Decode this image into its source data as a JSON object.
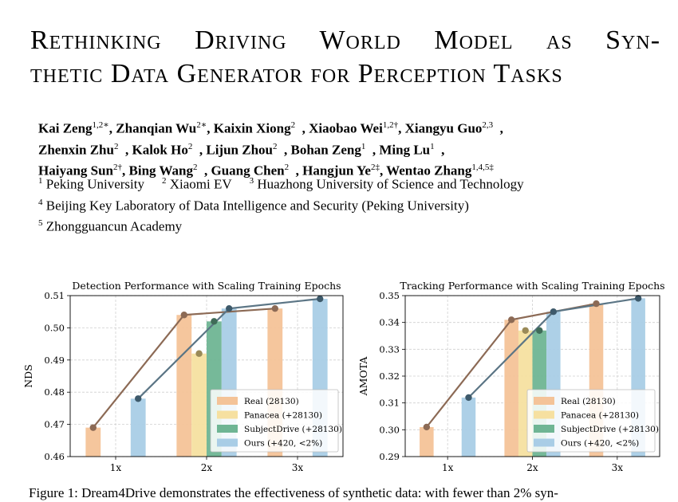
{
  "paper": {
    "title_line1": [
      "Rethinking",
      "Driving",
      "World",
      "Model",
      "as",
      "Syn-"
    ],
    "title_line2": "thetic Data Generator for Perception Tasks",
    "author_lines": [
      [
        {
          "name": "Kai Zeng",
          "sup": "1,2∗",
          "sep": ", "
        },
        {
          "name": "Zhanqian Wu",
          "sup": "2∗",
          "sep": ", "
        },
        {
          "name": "Kaixin Xiong",
          "sup": "2",
          "sep": "  , "
        },
        {
          "name": "Xiaobao Wei",
          "sup": "1,2†",
          "sep": ", "
        },
        {
          "name": "Xiangyu Guo",
          "sup": "2,3",
          "sep": "  ,"
        }
      ],
      [
        {
          "name": "Zhenxin Zhu",
          "sup": "2",
          "sep": "  , "
        },
        {
          "name": "Kalok Ho",
          "sup": "2",
          "sep": "  , "
        },
        {
          "name": "Lijun Zhou",
          "sup": "2",
          "sep": "  , "
        },
        {
          "name": "Bohan Zeng",
          "sup": "1",
          "sep": "  , "
        },
        {
          "name": "Ming Lu",
          "sup": "1",
          "sep": "  ,"
        }
      ],
      [
        {
          "name": "Haiyang Sun",
          "sup": "2†",
          "sep": ", "
        },
        {
          "name": "Bing Wang",
          "sup": "2",
          "sep": "  , "
        },
        {
          "name": "Guang Chen",
          "sup": "2",
          "sep": "  , "
        },
        {
          "name": "Hangjun Ye",
          "sup": "2‡",
          "sep": ", "
        },
        {
          "name": "Wentao Zhang",
          "sup": "1,4,5‡",
          "sep": ""
        }
      ]
    ],
    "affiliations": [
      [
        {
          "num": "1",
          "text": "Peking University"
        },
        {
          "num": "2",
          "text": "Xiaomi EV"
        },
        {
          "num": "3",
          "text": "Huazhong University of Science and Technology"
        }
      ],
      [
        {
          "num": "4",
          "text": "Beijing Key Laboratory of Data Intelligence and Security (Peking University)"
        }
      ],
      [
        {
          "num": "5",
          "text": "Zhongguancun Academy"
        }
      ]
    ],
    "caption": "Figure 1: Dream4Drive demonstrates the effectiveness of synthetic data: with fewer than 2% syn-"
  },
  "colors": {
    "real": "#f4c398",
    "panacea": "#f6e0a0",
    "subjectdrive": "#6fb594",
    "ours": "#a9cde6",
    "line_brown": "#8c6a55",
    "line_blue": "#5b7585",
    "dot_brown": "#8c6a55",
    "dot_panacea": "#9a8a58",
    "dot_subject": "#3f6b58",
    "dot_ours": "#3e5a6b"
  },
  "chart_data": [
    {
      "type": "bar",
      "title": "Detection Performance with Scaling Training Epochs",
      "xlabel": "",
      "ylabel": "NDS",
      "categories": [
        "1x",
        "2x",
        "3x"
      ],
      "ylim": [
        0.46,
        0.51
      ],
      "yticks": [
        "0.46",
        "0.47",
        "0.48",
        "0.49",
        "0.50",
        "0.51"
      ],
      "grid": true,
      "legend_position": "bottom-right",
      "series": [
        {
          "name": "Real (28130)",
          "color_key": "real",
          "dot_key": "dot_brown",
          "values": [
            0.469,
            0.504,
            0.506
          ]
        },
        {
          "name": "Panacea (+28130)",
          "color_key": "panacea",
          "dot_key": "dot_panacea",
          "values": [
            null,
            0.492,
            null
          ]
        },
        {
          "name": "SubjectDrive (+28130)",
          "color_key": "subjectdrive",
          "dot_key": "dot_subject",
          "values": [
            null,
            0.502,
            null
          ]
        },
        {
          "name": "Ours (+420, <2%)",
          "color_key": "ours",
          "dot_key": "dot_ours",
          "values": [
            0.478,
            0.506,
            0.509
          ]
        }
      ]
    },
    {
      "type": "bar",
      "title": "Tracking Performance with Scaling Training Epochs",
      "xlabel": "",
      "ylabel": "AMOTA",
      "categories": [
        "1x",
        "2x",
        "3x"
      ],
      "ylim": [
        0.29,
        0.35
      ],
      "yticks": [
        "0.29",
        "0.30",
        "0.31",
        "0.32",
        "0.33",
        "0.34",
        "0.35"
      ],
      "grid": true,
      "legend_position": "bottom-right",
      "series": [
        {
          "name": "Real (28130)",
          "color_key": "real",
          "dot_key": "dot_brown",
          "values": [
            0.301,
            0.341,
            0.347
          ]
        },
        {
          "name": "Panacea (+28130)",
          "color_key": "panacea",
          "dot_key": "dot_panacea",
          "values": [
            null,
            0.337,
            null
          ]
        },
        {
          "name": "SubjectDrive (+28130)",
          "color_key": "subjectdrive",
          "dot_key": "dot_subject",
          "values": [
            null,
            0.337,
            null
          ]
        },
        {
          "name": "Ours (+420, <2%)",
          "color_key": "ours",
          "dot_key": "dot_ours",
          "values": [
            0.312,
            0.344,
            0.349
          ]
        }
      ]
    }
  ]
}
